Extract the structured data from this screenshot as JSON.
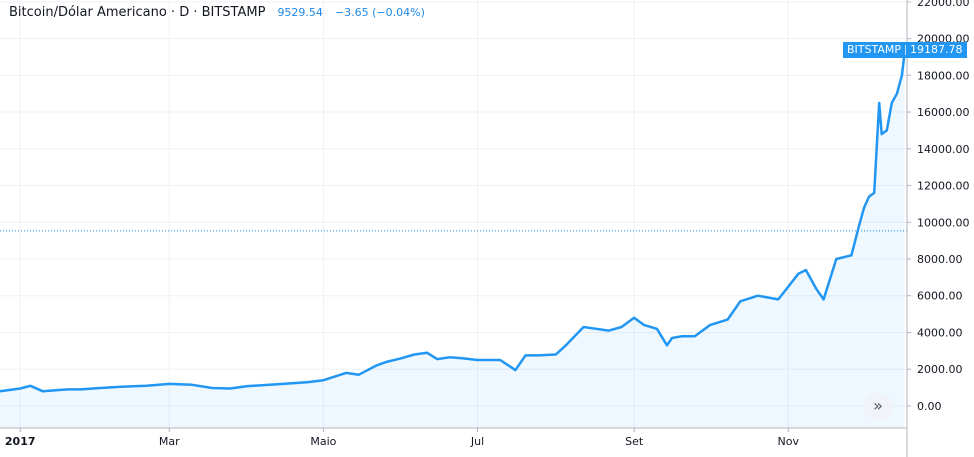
{
  "header": {
    "symbol": "Bitcoin/Dólar Americano · D · BITSTAMP",
    "price": "9529.54",
    "change": "−3.65 (−0.04%)"
  },
  "badge": {
    "exchange": "BITSTAMP",
    "value": "19187.78"
  },
  "scroll_icon": "»",
  "chart_data": {
    "type": "area",
    "y_axis": {
      "ticks": [
        0,
        2000,
        4000,
        6000,
        8000,
        10000,
        12000,
        14000,
        16000,
        18000,
        20000,
        22000
      ],
      "labels": [
        "0.00",
        "2000.00",
        "4000.00",
        "6000.00",
        "8000.00",
        "10000.00",
        "12000.00",
        "14000.00",
        "16000.00",
        "18000.00",
        "20000.00",
        "22000.00"
      ],
      "range": [
        -1200,
        22100
      ]
    },
    "x_axis": {
      "labels": [
        "2017",
        "Mar",
        "Maio",
        "Jul",
        "Set",
        "Nov"
      ],
      "tick_dates": [
        "2017-01-01",
        "2017-03-01",
        "2017-05-01",
        "2017-07-01",
        "2017-09-01",
        "2017-11-01"
      ],
      "range": [
        "2016-12-24",
        "2017-12-18"
      ]
    },
    "reference_line": 9529.54,
    "grid": true,
    "colors": {
      "line": "#2196f3",
      "fill": "#2196f3",
      "grid": "#eef1f6",
      "axis_text": "#131722",
      "ref_line": "#1e88e5",
      "accent": "#2196f3"
    },
    "series": [
      {
        "x": [
          "2016-12-24",
          "2017-01-01",
          "2017-01-05",
          "2017-01-10",
          "2017-01-15",
          "2017-01-20",
          "2017-01-25",
          "2017-02-01",
          "2017-02-10",
          "2017-02-20",
          "2017-03-01",
          "2017-03-10",
          "2017-03-18",
          "2017-03-25",
          "2017-04-01",
          "2017-04-15",
          "2017-04-25",
          "2017-05-01",
          "2017-05-10",
          "2017-05-15",
          "2017-05-22",
          "2017-05-26",
          "2017-06-01",
          "2017-06-06",
          "2017-06-11",
          "2017-06-15",
          "2017-06-20",
          "2017-06-25",
          "2017-07-01",
          "2017-07-10",
          "2017-07-16",
          "2017-07-20",
          "2017-07-25",
          "2017-08-01",
          "2017-08-05",
          "2017-08-12",
          "2017-08-17",
          "2017-08-22",
          "2017-08-27",
          "2017-09-01",
          "2017-09-05",
          "2017-09-10",
          "2017-09-14",
          "2017-09-16",
          "2017-09-20",
          "2017-09-25",
          "2017-10-01",
          "2017-10-08",
          "2017-10-13",
          "2017-10-20",
          "2017-10-28",
          "2017-11-01",
          "2017-11-05",
          "2017-11-08",
          "2017-11-12",
          "2017-11-15",
          "2017-11-20",
          "2017-11-26",
          "2017-11-29",
          "2017-12-01",
          "2017-12-03",
          "2017-12-05",
          "2017-12-07",
          "2017-12-08",
          "2017-12-10",
          "2017-12-12",
          "2017-12-14",
          "2017-12-16",
          "2017-12-17"
        ],
        "y": [
          800,
          950,
          1100,
          800,
          850,
          900,
          900,
          970,
          1050,
          1100,
          1200,
          1150,
          980,
          950,
          1080,
          1200,
          1300,
          1400,
          1800,
          1700,
          2200,
          2400,
          2600,
          2800,
          2900,
          2550,
          2650,
          2600,
          2500,
          2500,
          1950,
          2750,
          2750,
          2800,
          3300,
          4300,
          4200,
          4100,
          4300,
          4800,
          4400,
          4200,
          3300,
          3700,
          3800,
          3800,
          4400,
          4700,
          5700,
          6000,
          5800,
          6500,
          7200,
          7400,
          6400,
          5800,
          8000,
          8200,
          9800,
          10800,
          11400,
          11600,
          16500,
          14800,
          15000,
          16500,
          17000,
          18000,
          19187.78
        ]
      }
    ]
  }
}
